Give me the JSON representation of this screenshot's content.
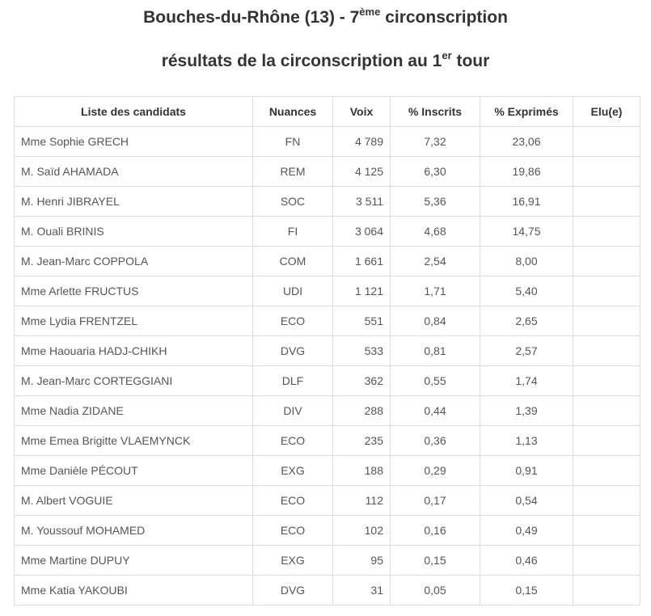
{
  "page": {
    "title": {
      "prefix": "Bouches-du-Rhône (13) - 7",
      "sup": "ème",
      "suffix": " circonscription"
    },
    "subtitle": {
      "prefix": "résultats de la circonscription au 1",
      "sup": "er",
      "suffix": " tour"
    }
  },
  "table": {
    "columns": [
      "Liste des candidats",
      "Nuances",
      "Voix",
      "% Inscrits",
      "% Exprimés",
      "Elu(e)"
    ],
    "rows": [
      {
        "name": "Mme Sophie GRECH",
        "nuance": "FN",
        "voix": "4 789",
        "inscrits": "7,32",
        "exprimes": "23,06",
        "elu": ""
      },
      {
        "name": "M. Saïd AHAMADA",
        "nuance": "REM",
        "voix": "4 125",
        "inscrits": "6,30",
        "exprimes": "19,86",
        "elu": ""
      },
      {
        "name": "M. Henri JIBRAYEL",
        "nuance": "SOC",
        "voix": "3 511",
        "inscrits": "5,36",
        "exprimes": "16,91",
        "elu": ""
      },
      {
        "name": "M. Ouali BRINIS",
        "nuance": "FI",
        "voix": "3 064",
        "inscrits": "4,68",
        "exprimes": "14,75",
        "elu": ""
      },
      {
        "name": "M. Jean-Marc COPPOLA",
        "nuance": "COM",
        "voix": "1 661",
        "inscrits": "2,54",
        "exprimes": "8,00",
        "elu": ""
      },
      {
        "name": "Mme Arlette FRUCTUS",
        "nuance": "UDI",
        "voix": "1 121",
        "inscrits": "1,71",
        "exprimes": "5,40",
        "elu": ""
      },
      {
        "name": "Mme Lydia FRENTZEL",
        "nuance": "ECO",
        "voix": "551",
        "inscrits": "0,84",
        "exprimes": "2,65",
        "elu": ""
      },
      {
        "name": "Mme Haouaria HADJ-CHIKH",
        "nuance": "DVG",
        "voix": "533",
        "inscrits": "0,81",
        "exprimes": "2,57",
        "elu": ""
      },
      {
        "name": "M. Jean-Marc CORTEGGIANI",
        "nuance": "DLF",
        "voix": "362",
        "inscrits": "0,55",
        "exprimes": "1,74",
        "elu": ""
      },
      {
        "name": "Mme Nadia ZIDANE",
        "nuance": "DIV",
        "voix": "288",
        "inscrits": "0,44",
        "exprimes": "1,39",
        "elu": ""
      },
      {
        "name": "Mme Emea Brigitte VLAEMYNCK",
        "nuance": "ECO",
        "voix": "235",
        "inscrits": "0,36",
        "exprimes": "1,13",
        "elu": ""
      },
      {
        "name": "Mme Danièle PÉCOUT",
        "nuance": "EXG",
        "voix": "188",
        "inscrits": "0,29",
        "exprimes": "0,91",
        "elu": ""
      },
      {
        "name": "M. Albert VOGUIE",
        "nuance": "ECO",
        "voix": "112",
        "inscrits": "0,17",
        "exprimes": "0,54",
        "elu": ""
      },
      {
        "name": "M. Youssouf MOHAMED",
        "nuance": "ECO",
        "voix": "102",
        "inscrits": "0,16",
        "exprimes": "0,49",
        "elu": ""
      },
      {
        "name": "Mme Martine DUPUY",
        "nuance": "EXG",
        "voix": "95",
        "inscrits": "0,15",
        "exprimes": "0,46",
        "elu": ""
      },
      {
        "name": "Mme Katia YAKOUBI",
        "nuance": "DVG",
        "voix": "31",
        "inscrits": "0,05",
        "exprimes": "0,15",
        "elu": ""
      }
    ]
  },
  "colors": {
    "title_text": "#333333",
    "header_text": "#333333",
    "body_text": "#555555",
    "border": "#dddddd",
    "background": "#ffffff"
  }
}
